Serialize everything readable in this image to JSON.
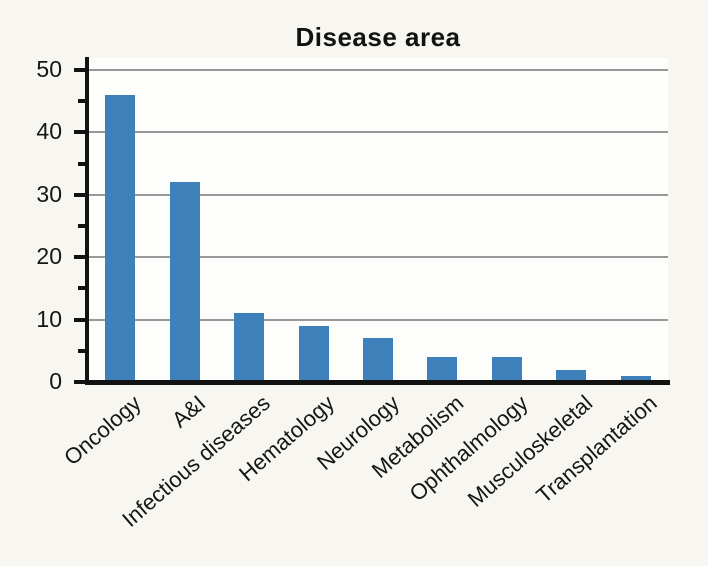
{
  "chart_data": {
    "type": "bar",
    "title": "Disease area",
    "categories": [
      "Oncology",
      "A&I",
      "Infectious diseases",
      "Hematology",
      "Neurology",
      "Metabolism",
      "Ophthalmology",
      "Musculoskeletal",
      "Transplantation"
    ],
    "values": [
      46,
      32,
      11,
      9,
      7,
      4,
      4,
      2,
      1
    ],
    "xlabel": "",
    "ylabel": "",
    "ylim": [
      0,
      52
    ],
    "yticks": [
      0,
      10,
      20,
      30,
      40,
      50
    ],
    "minor_yticks": [
      5,
      15,
      25,
      35,
      45
    ],
    "grid": true,
    "legend_position": "none",
    "bar_color": "#3d80ba",
    "grid_color": "#999999",
    "axis_color": "#121212",
    "background_color": "#f7f6f0",
    "plot_background_color": "#fdfdfb"
  }
}
